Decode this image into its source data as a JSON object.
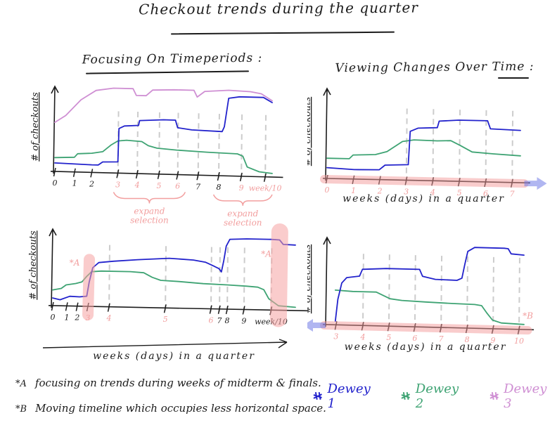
{
  "title": "Checkout trends during the quarter",
  "sections": {
    "left": "Focusing On Timeperiods :",
    "right": "Viewing Changes Over Time :"
  },
  "colors": {
    "ink": "#1c1c1c",
    "blue": "#2222cc",
    "green": "#3ea373",
    "plum": "#cf8fd3",
    "pink": "#f29f9f",
    "band_pink": "rgba(243,154,154,0.5)",
    "blob": "rgba(245,163,163,0.55)",
    "band_blue": "rgba(112,122,230,0.55)",
    "grid": "#cccccc"
  },
  "legend": [
    {
      "label": "Dewey 1",
      "color": "#2222cc"
    },
    {
      "label": "Dewey 2",
      "color": "#3ea373"
    },
    {
      "label": "Dewey 3",
      "color": "#cf8fd3"
    }
  ],
  "footnotes": [
    {
      "marker": "*A",
      "text": "focusing on trends during weeks of midterm & finals."
    },
    {
      "marker": "*B",
      "text": "Moving timeline which occupies less horizontal space."
    }
  ],
  "chart_data": [
    {
      "id": "tl",
      "name": "focus-timeperiods-original",
      "type": "line",
      "ylabel": "# of checkouts",
      "xlabel": null,
      "xlabel_arrow": false,
      "xlabel_y": 0,
      "size": [
        405,
        222
      ],
      "plot": {
        "x0": 48,
        "y0": 14,
        "x1": 357,
        "y1": 141,
        "slant": 8
      },
      "grid_top": 0.72,
      "ticks": [
        {
          "f": 0.0,
          "label": "0",
          "pink": false
        },
        {
          "f": 0.091,
          "label": "1",
          "pink": false
        },
        {
          "f": 0.17,
          "label": "2",
          "pink": false
        },
        {
          "f": 0.29,
          "label": "3",
          "pink": true
        },
        {
          "f": 0.379,
          "label": "4",
          "pink": true
        },
        {
          "f": 0.479,
          "label": "5",
          "pink": true
        },
        {
          "f": 0.565,
          "label": "6",
          "pink": true
        },
        {
          "f": 0.659,
          "label": "7",
          "pink": false
        },
        {
          "f": 0.754,
          "label": "8",
          "pink": false
        },
        {
          "f": 0.858,
          "label": "9",
          "pink": true
        },
        {
          "f": 0.968,
          "label": "week/10",
          "pink": true
        }
      ],
      "gridlines": [
        0.29,
        0.379,
        0.479,
        0.565,
        0.659,
        0.754,
        0.858,
        0.968
      ],
      "series": [
        {
          "name": "Dewey 3",
          "color": "plum",
          "points": [
            [
              0,
              0.55
            ],
            [
              0.05,
              0.63
            ],
            [
              0.12,
              0.81
            ],
            [
              0.19,
              0.92
            ],
            [
              0.27,
              0.95
            ],
            [
              0.36,
              0.95
            ],
            [
              0.375,
              0.875
            ],
            [
              0.42,
              0.875
            ],
            [
              0.45,
              0.94
            ],
            [
              0.55,
              0.95
            ],
            [
              0.64,
              0.95
            ],
            [
              0.655,
              0.875
            ],
            [
              0.69,
              0.94
            ],
            [
              0.8,
              0.96
            ],
            [
              0.9,
              0.95
            ],
            [
              0.95,
              0.93
            ],
            [
              1,
              0.855
            ]
          ]
        },
        {
          "name": "Dewey 2",
          "color": "green",
          "points": [
            [
              0,
              0.155
            ],
            [
              0.09,
              0.165
            ],
            [
              0.105,
              0.205
            ],
            [
              0.17,
              0.215
            ],
            [
              0.22,
              0.235
            ],
            [
              0.26,
              0.315
            ],
            [
              0.29,
              0.36
            ],
            [
              0.33,
              0.37
            ],
            [
              0.4,
              0.36
            ],
            [
              0.43,
              0.315
            ],
            [
              0.47,
              0.29
            ],
            [
              0.56,
              0.275
            ],
            [
              0.7,
              0.26
            ],
            [
              0.84,
              0.25
            ],
            [
              0.865,
              0.225
            ],
            [
              0.885,
              0.105
            ],
            [
              0.94,
              0.055
            ],
            [
              1,
              0.04
            ]
          ]
        },
        {
          "name": "Dewey 1",
          "color": "blue",
          "points": [
            [
              0,
              0.095
            ],
            [
              0.17,
              0.085
            ],
            [
              0.2,
              0.085
            ],
            [
              0.22,
              0.12
            ],
            [
              0.29,
              0.125
            ],
            [
              0.295,
              0.5
            ],
            [
              0.32,
              0.53
            ],
            [
              0.385,
              0.54
            ],
            [
              0.39,
              0.595
            ],
            [
              0.5,
              0.61
            ],
            [
              0.555,
              0.61
            ],
            [
              0.565,
              0.525
            ],
            [
              0.63,
              0.505
            ],
            [
              0.77,
              0.495
            ],
            [
              0.78,
              0.55
            ],
            [
              0.8,
              0.87
            ],
            [
              0.85,
              0.89
            ],
            [
              0.96,
              0.89
            ],
            [
              1,
              0.835
            ]
          ]
        }
      ],
      "braces": [
        {
          "f1": 0.27,
          "f2": 0.6,
          "label_lines": [
            "expand",
            "selection"
          ]
        },
        {
          "f1": 0.73,
          "f2": 1.0,
          "label_lines": [
            "expand",
            "selection"
          ]
        }
      ],
      "band": false,
      "arrow": null,
      "blobs": [],
      "marks": []
    },
    {
      "id": "bl",
      "name": "focus-timeperiods-expanded",
      "type": "line",
      "ylabel": "# of checkouts",
      "xlabel": "weeks (days) in a quarter",
      "xlabel_arrow": true,
      "xlabel_y": 205,
      "size": [
        415,
        228
      ],
      "plot": {
        "x0": 50,
        "y0": 14,
        "x1": 395,
        "y1": 129,
        "slant": 7
      },
      "grid_top": 0.8,
      "ticks": [
        {
          "f": 0.0,
          "label": "0",
          "pink": false
        },
        {
          "f": 0.058,
          "label": "1",
          "pink": false
        },
        {
          "f": 0.101,
          "label": "2",
          "pink": false
        },
        {
          "f": 0.145,
          "label": "3",
          "pink": true
        },
        {
          "f": 0.232,
          "label": "4",
          "pink": true
        },
        {
          "f": 0.464,
          "label": "5",
          "pink": true
        },
        {
          "f": 0.652,
          "label": "6",
          "pink": true
        },
        {
          "f": 0.687,
          "label": "7",
          "pink": false
        },
        {
          "f": 0.719,
          "label": "8",
          "pink": false
        },
        {
          "f": 0.788,
          "label": "9",
          "pink": false
        },
        {
          "f": 0.9,
          "label": "week/10",
          "pink": false
        }
      ],
      "gridlines": [
        0.232,
        0.464,
        0.652,
        0.687,
        0.719,
        0.788,
        0.9
      ],
      "series": [
        {
          "name": "Dewey 2",
          "color": "green",
          "points": [
            [
              0,
              0.195
            ],
            [
              0.035,
              0.215
            ],
            [
              0.055,
              0.26
            ],
            [
              0.095,
              0.28
            ],
            [
              0.12,
              0.3
            ],
            [
              0.14,
              0.37
            ],
            [
              0.16,
              0.43
            ],
            [
              0.2,
              0.44
            ],
            [
              0.32,
              0.44
            ],
            [
              0.375,
              0.43
            ],
            [
              0.41,
              0.375
            ],
            [
              0.445,
              0.34
            ],
            [
              0.52,
              0.33
            ],
            [
              0.62,
              0.31
            ],
            [
              0.72,
              0.3
            ],
            [
              0.8,
              0.29
            ],
            [
              0.845,
              0.28
            ],
            [
              0.87,
              0.25
            ],
            [
              0.89,
              0.14
            ],
            [
              0.93,
              0.055
            ],
            [
              1,
              0.04
            ]
          ]
        },
        {
          "name": "Dewey 1",
          "color": "blue",
          "points": [
            [
              0,
              0.095
            ],
            [
              0.03,
              0.075
            ],
            [
              0.07,
              0.12
            ],
            [
              0.11,
              0.115
            ],
            [
              0.14,
              0.125
            ],
            [
              0.15,
              0.3
            ],
            [
              0.165,
              0.48
            ],
            [
              0.19,
              0.545
            ],
            [
              0.25,
              0.565
            ],
            [
              0.35,
              0.59
            ],
            [
              0.48,
              0.615
            ],
            [
              0.58,
              0.6
            ],
            [
              0.63,
              0.575
            ],
            [
              0.66,
              0.535
            ],
            [
              0.685,
              0.5
            ],
            [
              0.695,
              0.46
            ],
            [
              0.705,
              0.6
            ],
            [
              0.715,
              0.78
            ],
            [
              0.73,
              0.865
            ],
            [
              0.8,
              0.875
            ],
            [
              0.9,
              0.875
            ],
            [
              0.935,
              0.87
            ],
            [
              0.95,
              0.815
            ],
            [
              1,
              0.81
            ]
          ]
        }
      ],
      "braces": [],
      "band": false,
      "arrow": null,
      "blobs": [
        {
          "f": 0.145,
          "h": 0.58,
          "w": 16
        },
        {
          "f": 0.93,
          "h": 0.97,
          "w": 24
        }
      ],
      "marks": [
        {
          "text": "*A",
          "f": 0.09,
          "yf": 0.5
        },
        {
          "text": "*A",
          "f": 0.88,
          "yf": 0.66
        }
      ]
    },
    {
      "id": "tr",
      "name": "changes-over-time-weeks-0-7",
      "type": "line",
      "ylabel": "# of checkouts",
      "xlabel": "weeks (days) in a quarter",
      "xlabel_arrow": false,
      "xlabel_y": 181,
      "size": [
        353,
        192
      ],
      "plot": {
        "x0": 28,
        "y0": 14,
        "x1": 303,
        "y1": 148,
        "slant": 6
      },
      "grid_top": 0.78,
      "ticks": [
        {
          "f": 0.0,
          "label": "0",
          "pink": true
        },
        {
          "f": 0.137,
          "label": "1",
          "pink": true
        },
        {
          "f": 0.273,
          "label": "2",
          "pink": true
        },
        {
          "f": 0.41,
          "label": "3",
          "pink": true
        },
        {
          "f": 0.547,
          "label": "4",
          "pink": true
        },
        {
          "f": 0.684,
          "label": "5",
          "pink": true
        },
        {
          "f": 0.82,
          "label": "6",
          "pink": true
        },
        {
          "f": 0.957,
          "label": "7",
          "pink": true
        }
      ],
      "gridlines": [
        0.41,
        0.547,
        0.684,
        0.82,
        0.957
      ],
      "series": [
        {
          "name": "Dewey 2",
          "color": "green",
          "points": [
            [
              0,
              0.215
            ],
            [
              0.115,
              0.215
            ],
            [
              0.135,
              0.255
            ],
            [
              0.25,
              0.265
            ],
            [
              0.31,
              0.3
            ],
            [
              0.39,
              0.41
            ],
            [
              0.45,
              0.43
            ],
            [
              0.57,
              0.425
            ],
            [
              0.64,
              0.43
            ],
            [
              0.69,
              0.38
            ],
            [
              0.75,
              0.315
            ],
            [
              0.86,
              0.3
            ],
            [
              1,
              0.285
            ]
          ]
        },
        {
          "name": "Dewey 1",
          "color": "blue",
          "points": [
            [
              0,
              0.115
            ],
            [
              0.14,
              0.1
            ],
            [
              0.27,
              0.105
            ],
            [
              0.3,
              0.155
            ],
            [
              0.42,
              0.165
            ],
            [
              0.43,
              0.52
            ],
            [
              0.47,
              0.555
            ],
            [
              0.57,
              0.565
            ],
            [
              0.58,
              0.635
            ],
            [
              0.68,
              0.65
            ],
            [
              0.83,
              0.65
            ],
            [
              0.845,
              0.565
            ],
            [
              1,
              0.555
            ]
          ]
        }
      ],
      "braces": [],
      "band": true,
      "arrow": "right",
      "blobs": [],
      "marks": []
    },
    {
      "id": "br",
      "name": "changes-over-time-weeks-3-10",
      "type": "line",
      "ylabel": "# of checkouts",
      "xlabel": "weeks (days) in a quarter",
      "xlabel_arrow": false,
      "xlabel_y": 178,
      "size": [
        353,
        205
      ],
      "plot": {
        "x0": 28,
        "y0": 12,
        "x1": 308,
        "y1": 142,
        "slant": 7
      },
      "grid_top": 0.82,
      "ticks": [
        {
          "f": 0.046,
          "label": "3",
          "pink": true
        },
        {
          "f": 0.182,
          "label": "4",
          "pink": true
        },
        {
          "f": 0.314,
          "label": "5",
          "pink": true
        },
        {
          "f": 0.446,
          "label": "6",
          "pink": true
        },
        {
          "f": 0.579,
          "label": "7",
          "pink": true
        },
        {
          "f": 0.711,
          "label": "8",
          "pink": true
        },
        {
          "f": 0.843,
          "label": "9",
          "pink": true
        },
        {
          "f": 0.975,
          "label": "10",
          "pink": true
        }
      ],
      "gridlines": [
        0.182,
        0.314,
        0.446,
        0.579,
        0.711,
        0.843,
        0.975
      ],
      "series": [
        {
          "name": "Dewey 2",
          "color": "green",
          "points": [
            [
              0.042,
              0.38
            ],
            [
              0.13,
              0.37
            ],
            [
              0.25,
              0.37
            ],
            [
              0.285,
              0.335
            ],
            [
              0.32,
              0.3
            ],
            [
              0.38,
              0.285
            ],
            [
              0.5,
              0.275
            ],
            [
              0.64,
              0.265
            ],
            [
              0.75,
              0.26
            ],
            [
              0.785,
              0.25
            ],
            [
              0.81,
              0.175
            ],
            [
              0.84,
              0.095
            ],
            [
              0.885,
              0.065
            ],
            [
              1,
              0.055
            ]
          ]
        },
        {
          "name": "Dewey 1",
          "color": "blue",
          "points": [
            [
              0.042,
              0.04
            ],
            [
              0.055,
              0.28
            ],
            [
              0.075,
              0.46
            ],
            [
              0.1,
              0.52
            ],
            [
              0.165,
              0.54
            ],
            [
              0.18,
              0.615
            ],
            [
              0.3,
              0.63
            ],
            [
              0.47,
              0.63
            ],
            [
              0.485,
              0.555
            ],
            [
              0.55,
              0.525
            ],
            [
              0.66,
              0.52
            ],
            [
              0.685,
              0.545
            ],
            [
              0.7,
              0.7
            ],
            [
              0.715,
              0.84
            ],
            [
              0.75,
              0.885
            ],
            [
              0.9,
              0.885
            ],
            [
              0.92,
              0.88
            ],
            [
              0.935,
              0.825
            ],
            [
              1,
              0.815
            ]
          ]
        }
      ],
      "braces": [],
      "band": true,
      "arrow": "left",
      "blobs": [],
      "marks": [
        {
          "text": "*B",
          "f": 1.02,
          "yf": 0.12
        }
      ]
    }
  ]
}
